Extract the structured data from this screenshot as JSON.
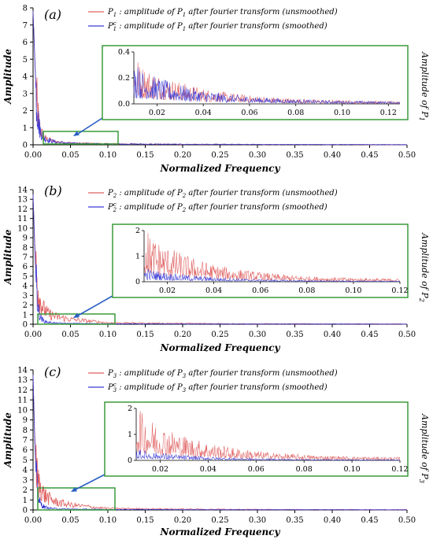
{
  "colors": {
    "unsmoothed": "#e06060",
    "smoothed": "#3a3ad6",
    "inset_border": "#3a9a3a",
    "arrow": "#2a5fc4"
  },
  "chart_data": [
    {
      "type": "line",
      "panel_letter": "(a)",
      "xlabel": "Normalized Frequency",
      "ylabel": "Amplitude",
      "side_label": "Amplitude of P1",
      "xlim": [
        0,
        0.5
      ],
      "ylim": [
        0,
        8
      ],
      "x_ticks": [
        "0.00",
        "0.05",
        "0.10",
        "0.15",
        "0.20",
        "0.25",
        "0.30",
        "0.35",
        "0.40",
        "0.45",
        "0.50"
      ],
      "y_ticks": [
        "0",
        "1",
        "2",
        "3",
        "4",
        "5",
        "6",
        "7",
        "8"
      ],
      "legend": [
        "P1 : amplitude of P1 after fourier transform (unsmoothed)",
        "P1c : amplitude of P1 after fourier transform (smoothed)"
      ],
      "series": [
        {
          "name": "P1 : amplitude of P1 after fourier transform (unsmoothed)",
          "x": [
            0,
            0.002,
            0.004,
            0.006,
            0.008,
            0.01,
            0.015,
            0.02,
            0.03,
            0.05,
            0.1,
            0.2,
            0.3,
            0.4,
            0.5
          ],
          "y": [
            7.8,
            5.5,
            3.2,
            2.0,
            1.2,
            0.8,
            0.4,
            0.3,
            0.18,
            0.1,
            0.06,
            0.03,
            0.02,
            0.015,
            0.01
          ]
        },
        {
          "name": "P1c : amplitude of P1 after fourier transform (smoothed)",
          "x": [
            0,
            0.002,
            0.004,
            0.006,
            0.008,
            0.01,
            0.015,
            0.02,
            0.03,
            0.05,
            0.1,
            0.2,
            0.3,
            0.4,
            0.5
          ],
          "y": [
            7.8,
            5.4,
            3.1,
            1.9,
            1.1,
            0.75,
            0.38,
            0.28,
            0.16,
            0.09,
            0.05,
            0.03,
            0.02,
            0.015,
            0.01
          ]
        }
      ],
      "inset": {
        "xlim": [
          0.01,
          0.125
        ],
        "ylim": [
          0,
          0.4
        ],
        "x_ticks": [
          "0.02",
          "0.04",
          "0.06",
          "0.08",
          "0.10",
          "0.12"
        ],
        "y_ticks": [
          "0.0",
          "0.2",
          "0.4"
        ],
        "unsmoothed_peak": 0.32,
        "smoothed_peak": 0.28
      }
    },
    {
      "type": "line",
      "panel_letter": "(b)",
      "xlabel": "Normalized Frequency",
      "ylabel": "Amplitude",
      "side_label": "Amplitude of P2",
      "xlim": [
        0,
        0.5
      ],
      "ylim": [
        0,
        14
      ],
      "x_ticks": [
        "0.00",
        "0.05",
        "0.10",
        "0.15",
        "0.20",
        "0.25",
        "0.30",
        "0.35",
        "0.40",
        "0.45",
        "0.50"
      ],
      "y_ticks": [
        "0",
        "1",
        "2",
        "3",
        "4",
        "5",
        "6",
        "7",
        "8",
        "9",
        "10",
        "11",
        "12",
        "13",
        "14"
      ],
      "legend": [
        "P2 : amplitude of P2 after fourier transform (unsmoothed)",
        "P2c : amplitude of P2 after fourier transform (smoothed)"
      ],
      "series": [
        {
          "name": "P2 : amplitude of P2 after fourier transform (unsmoothed)",
          "x": [
            0,
            0.002,
            0.004,
            0.006,
            0.008,
            0.01,
            0.015,
            0.02,
            0.03,
            0.05,
            0.1,
            0.2,
            0.3,
            0.4,
            0.5
          ],
          "y": [
            13.5,
            9.0,
            5.5,
            3.8,
            3.0,
            2.2,
            1.5,
            1.1,
            0.8,
            0.5,
            0.15,
            0.08,
            0.05,
            0.04,
            0.03
          ]
        },
        {
          "name": "P2c : amplitude of P2 after fourier transform (smoothed)",
          "x": [
            0,
            0.002,
            0.004,
            0.006,
            0.008,
            0.01,
            0.015,
            0.02,
            0.03,
            0.05,
            0.1,
            0.2,
            0.3,
            0.4,
            0.5
          ],
          "y": [
            13.5,
            8.5,
            4.5,
            2.2,
            1.2,
            0.7,
            0.3,
            0.2,
            0.12,
            0.08,
            0.05,
            0.03,
            0.02,
            0.02,
            0.01
          ]
        }
      ],
      "inset": {
        "xlim": [
          0.01,
          0.12
        ],
        "ylim": [
          0,
          2
        ],
        "x_ticks": [
          "0.02",
          "0.04",
          "0.06",
          "0.08",
          "0.10",
          "0.12"
        ],
        "y_ticks": [
          "0",
          "1",
          "2"
        ],
        "unsmoothed_peak": 1.9,
        "smoothed_peak": 0.5
      }
    },
    {
      "type": "line",
      "panel_letter": "(c)",
      "xlabel": "Normalized Frequency",
      "ylabel": "Amplitude",
      "side_label": "Amplitude of P3",
      "xlim": [
        0,
        0.5
      ],
      "ylim": [
        0,
        14
      ],
      "x_ticks": [
        "0.00",
        "0.05",
        "0.10",
        "0.15",
        "0.20",
        "0.25",
        "0.30",
        "0.35",
        "0.40",
        "0.45",
        "0.50"
      ],
      "y_ticks": [
        "0",
        "1",
        "2",
        "3",
        "4",
        "5",
        "6",
        "7",
        "8",
        "9",
        "10",
        "11",
        "12",
        "13",
        "14"
      ],
      "legend": [
        "P3 : amplitude of P3 after fourier transform (unsmoothed)",
        "P3c : amplitude of P3 after fourier transform (smoothed)"
      ],
      "series": [
        {
          "name": "P3 : amplitude of P3 after fourier transform (unsmoothed)",
          "x": [
            0,
            0.002,
            0.004,
            0.006,
            0.008,
            0.01,
            0.015,
            0.02,
            0.03,
            0.05,
            0.1,
            0.2,
            0.3,
            0.4,
            0.5
          ],
          "y": [
            13.5,
            8.0,
            4.5,
            3.0,
            2.6,
            2.2,
            1.5,
            1.2,
            0.8,
            0.5,
            0.15,
            0.08,
            0.05,
            0.04,
            0.03
          ]
        },
        {
          "name": "P3c : amplitude of P3 after fourier transform (smoothed)",
          "x": [
            0,
            0.002,
            0.004,
            0.006,
            0.008,
            0.01,
            0.015,
            0.02,
            0.03,
            0.05,
            0.1,
            0.2,
            0.3,
            0.4,
            0.5
          ],
          "y": [
            13.5,
            7.5,
            3.5,
            1.8,
            1.0,
            0.6,
            0.3,
            0.2,
            0.12,
            0.08,
            0.05,
            0.03,
            0.02,
            0.02,
            0.01
          ]
        }
      ],
      "inset": {
        "xlim": [
          0.01,
          0.12
        ],
        "ylim": [
          0,
          2
        ],
        "x_ticks": [
          "0.02",
          "0.04",
          "0.06",
          "0.08",
          "0.10",
          "0.12"
        ],
        "y_ticks": [
          "0",
          "1",
          "2"
        ],
        "unsmoothed_peak": 1.9,
        "smoothed_peak": 0.4
      }
    }
  ]
}
